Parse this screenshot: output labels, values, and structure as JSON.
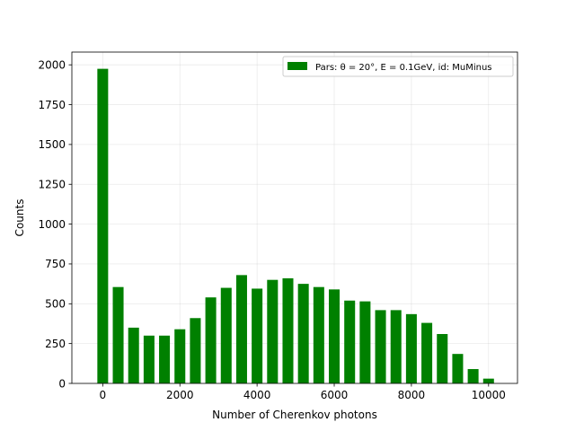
{
  "chart_data": {
    "type": "bar",
    "title": "",
    "xlabel": "Number of Cherenkov photons",
    "ylabel": "Counts",
    "xlim": [
      -800,
      10750
    ],
    "ylim": [
      0,
      2080
    ],
    "bin_width": 400,
    "bar_width": 280,
    "xticks": [
      0,
      2000,
      4000,
      6000,
      8000,
      10000
    ],
    "xtick_labels": [
      "0",
      "2000",
      "4000",
      "6000",
      "8000",
      "10000"
    ],
    "yticks": [
      0,
      250,
      500,
      750,
      1000,
      1250,
      1500,
      1750,
      2000
    ],
    "ytick_labels": [
      "0",
      "250",
      "500",
      "750",
      "1000",
      "1250",
      "1500",
      "1750",
      "2000"
    ],
    "grid": true,
    "legend_position": "upper right",
    "color": "#008000",
    "series": [
      {
        "name": "Pars: θ = 20°, E = 0.1GeV, id: MuMinus",
        "x": [
          0,
          400,
          800,
          1200,
          1600,
          2000,
          2400,
          2800,
          3200,
          3600,
          4000,
          4400,
          4800,
          5200,
          5600,
          6000,
          6400,
          6800,
          7200,
          7600,
          8000,
          8400,
          8800,
          9200,
          9600,
          10000
        ],
        "values": [
          1975,
          605,
          350,
          300,
          300,
          340,
          410,
          540,
          600,
          680,
          595,
          650,
          660,
          625,
          605,
          590,
          520,
          515,
          460,
          460,
          435,
          380,
          310,
          185,
          90,
          30
        ]
      }
    ]
  }
}
